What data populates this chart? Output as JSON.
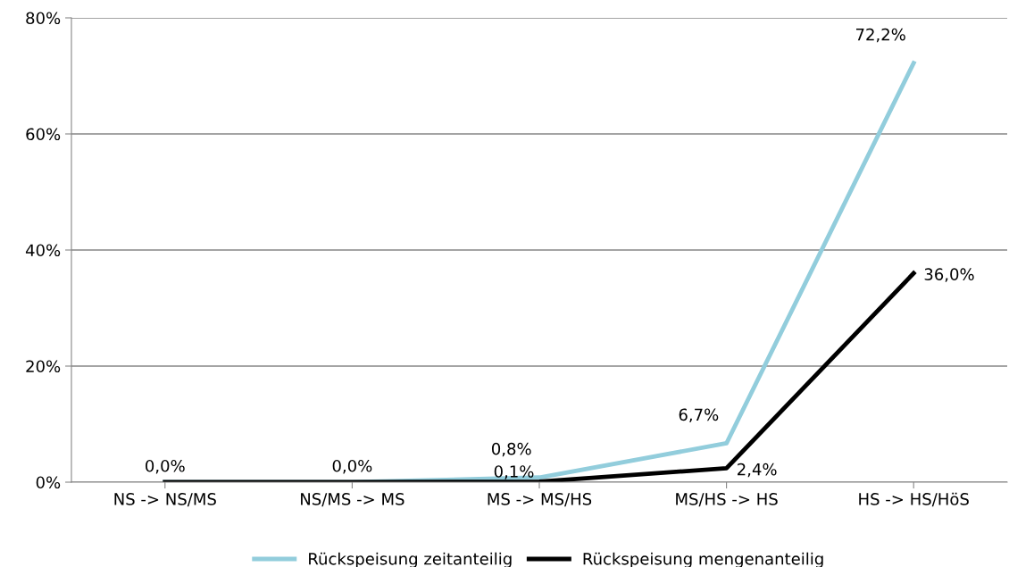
{
  "chart_data": {
    "type": "line",
    "categories": [
      "NS -> NS/MS",
      "NS/MS -> MS",
      "MS -> MS/HS",
      "MS/HS -> HS",
      "HS -> HS/HöS"
    ],
    "series": [
      {
        "name": "Rückspeisung zeitanteilig",
        "color": "#92cddc",
        "values": [
          0.0,
          0.0,
          0.8,
          6.7,
          72.2
        ],
        "value_labels": [
          "0,0%",
          "0,0%",
          "0,8%",
          "6,7%",
          "72,2%"
        ]
      },
      {
        "name": "Rückspeisung mengenanteilig",
        "color": "#000000",
        "values": [
          0.0,
          0.0,
          0.1,
          2.4,
          36.0
        ],
        "value_labels": [
          null,
          null,
          "0,1%",
          "2,4%",
          "36,0%"
        ]
      }
    ],
    "ylim": [
      0,
      80
    ],
    "yticks": [
      {
        "value": 0,
        "label": "0%"
      },
      {
        "value": 20,
        "label": "20%"
      },
      {
        "value": 40,
        "label": "40%"
      },
      {
        "value": 60,
        "label": "60%"
      },
      {
        "value": 80,
        "label": "80%"
      }
    ],
    "grid": "y",
    "legend": "bottom",
    "marker": "none",
    "line_style": "solid"
  }
}
